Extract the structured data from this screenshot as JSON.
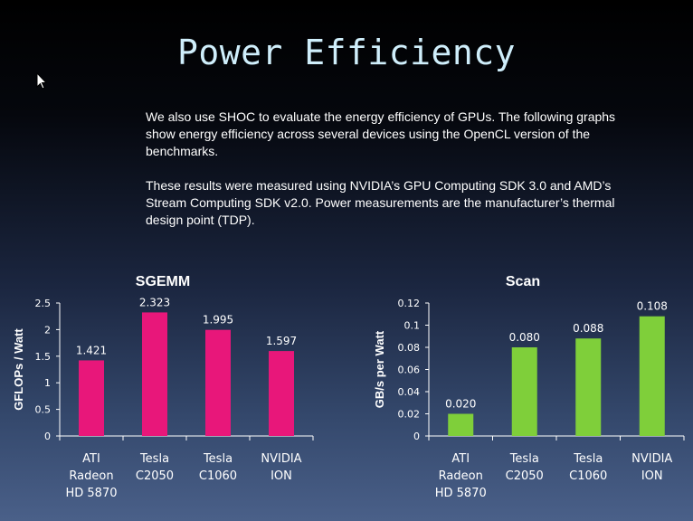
{
  "slide": {
    "title": "Power Efficiency",
    "paragraph1": "We also use SHOC to evaluate the energy efficiency of GPUs.  The following graphs show energy efficiency across several devices using the OpenCL version of the  benchmarks.",
    "paragraph2": "These results were measured using NVIDIA’s GPU Computing SDK 3.0 and AMD’s Stream Computing SDK v2.0.  Power measurements are the manufacturer’s thermal design point (TDP)."
  },
  "chart_data": [
    {
      "type": "bar",
      "title": "SGEMM",
      "ylabel": "GFLOPs / Watt",
      "xlabel": "",
      "categories": [
        [
          "ATI",
          "Radeon",
          "HD 5870"
        ],
        [
          "Tesla",
          "C2050"
        ],
        [
          "Tesla",
          "C1060"
        ],
        [
          "NVIDIA",
          "ION"
        ]
      ],
      "values": [
        1.421,
        2.323,
        1.995,
        1.597
      ],
      "value_labels": [
        "1.421",
        "2.323",
        "1.995",
        "1.597"
      ],
      "ylim": [
        0,
        2.5
      ],
      "yticks": [
        0,
        0.5,
        1,
        1.5,
        2,
        2.5
      ],
      "ytick_labels": [
        "0",
        "0.5",
        "1",
        "1.5",
        "2",
        "2.5"
      ],
      "color": "#e8177a",
      "grid": false,
      "legend": "none"
    },
    {
      "type": "bar",
      "title": "Scan",
      "ylabel": "GB/s per Watt",
      "xlabel": "",
      "categories": [
        [
          "ATI",
          "Radeon",
          "HD 5870"
        ],
        [
          "Tesla",
          "C2050"
        ],
        [
          "Tesla",
          "C1060"
        ],
        [
          "NVIDIA",
          "ION"
        ]
      ],
      "values": [
        0.02,
        0.08,
        0.088,
        0.108
      ],
      "value_labels": [
        "0.020",
        "0.080",
        "0.088",
        "0.108"
      ],
      "ylim": [
        0,
        0.12
      ],
      "yticks": [
        0,
        0.02,
        0.04,
        0.06,
        0.08,
        0.1,
        0.12
      ],
      "ytick_labels": [
        "0",
        "0.02",
        "0.04",
        "0.06",
        "0.08",
        "0.1",
        "0.12"
      ],
      "color": "#7fcf3a",
      "grid": false,
      "legend": "none"
    }
  ]
}
